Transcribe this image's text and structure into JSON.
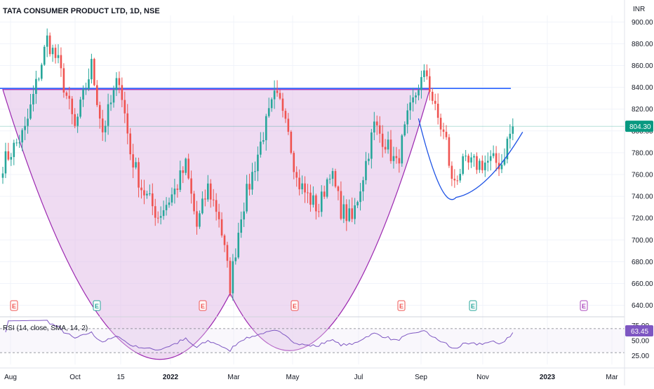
{
  "header": {
    "title": "TATA CONSUMER PRODUCT LTD, 1D, NSE",
    "currency": "INR"
  },
  "colors": {
    "up": "#26a69a",
    "down": "#ef5350",
    "resistance": "#2962ff",
    "cup_fill": "#e1bee7",
    "cup_stroke": "#9c27b0",
    "handle": "#1e53e5",
    "rsi_line": "#7e57c2",
    "price_tag": "#089981",
    "rsi_tag": "#7e57c2"
  },
  "chart_data": {
    "type": "candlestick",
    "price_axis": {
      "ticks": [
        "900.00",
        "880.00",
        "860.00",
        "840.00",
        "820.00",
        "800.00",
        "780.00",
        "760.00",
        "740.00",
        "720.00",
        "700.00",
        "680.00",
        "660.00",
        "640.00"
      ],
      "ylim": [
        632,
        906
      ]
    },
    "time_axis": {
      "labels": [
        "Aug",
        "Oct",
        "15",
        "2022",
        "Mar",
        "May",
        "Jul",
        "Sep",
        "Nov",
        "2023",
        "Mar"
      ]
    },
    "last_price": "804.30",
    "resistance_level": 839,
    "cup": {
      "start_index": 0,
      "bottom_index": 82,
      "bottom_price": 651,
      "end_index": 154,
      "rim_price": 838
    },
    "handle": {
      "start_index": 152,
      "bottom_index": 162,
      "bottom_price": 739,
      "end_index": 184,
      "end_price": 799
    },
    "ohlc_anchors": [
      [
        0,
        770
      ],
      [
        8,
        800
      ],
      [
        16,
        884
      ],
      [
        20,
        862
      ],
      [
        26,
        802
      ],
      [
        32,
        860
      ],
      [
        36,
        800
      ],
      [
        42,
        850
      ],
      [
        46,
        780
      ],
      [
        50,
        748
      ],
      [
        56,
        722
      ],
      [
        62,
        745
      ],
      [
        66,
        768
      ],
      [
        70,
        712
      ],
      [
        74,
        748
      ],
      [
        78,
        722
      ],
      [
        82,
        658
      ],
      [
        86,
        725
      ],
      [
        90,
        760
      ],
      [
        94,
        798
      ],
      [
        98,
        830
      ],
      [
        102,
        820
      ],
      [
        106,
        755
      ],
      [
        110,
        740
      ],
      [
        114,
        728
      ],
      [
        118,
        765
      ],
      [
        122,
        728
      ],
      [
        126,
        718
      ],
      [
        130,
        760
      ],
      [
        134,
        805
      ],
      [
        138,
        790
      ],
      [
        142,
        768
      ],
      [
        146,
        810
      ],
      [
        150,
        842
      ],
      [
        153,
        852
      ],
      [
        156,
        818
      ],
      [
        160,
        790
      ],
      [
        162,
        752
      ],
      [
        166,
        768
      ],
      [
        172,
        770
      ],
      [
        176,
        772
      ],
      [
        180,
        770
      ],
      [
        182,
        790
      ],
      [
        184,
        804
      ]
    ],
    "earnings_markers": [
      "E",
      "E",
      "E",
      "E",
      "E",
      "E",
      "E"
    ],
    "rsi": {
      "title": "RSI (14, close, SMA, 14, 2)",
      "ticks": [
        "75.00",
        "50.00",
        "25.00"
      ],
      "upper_band": 70,
      "lower_band": 30,
      "last_value": "63.45"
    }
  }
}
